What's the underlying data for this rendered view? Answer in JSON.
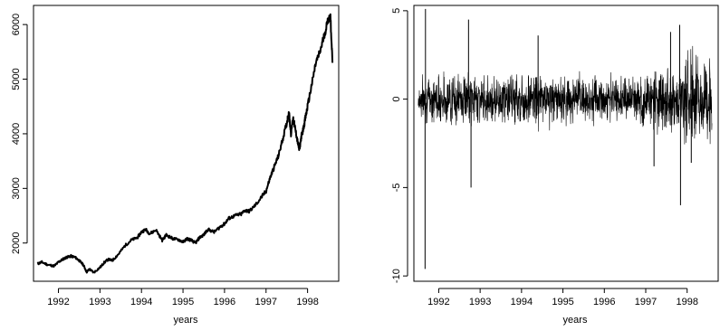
{
  "chart_data": [
    {
      "type": "line",
      "title": "",
      "xlabel": "years",
      "ylabel": "",
      "xlim": [
        1991.4,
        1998.75
      ],
      "ylim": [
        1300,
        6350
      ],
      "x_ticks": [
        1992,
        1993,
        1994,
        1995,
        1996,
        1997,
        1998
      ],
      "x_tick_labels": [
        "1992",
        "1993",
        "1994",
        "1995",
        "1996",
        "1997",
        "1998"
      ],
      "y_ticks": [
        2000,
        3000,
        4000,
        5000,
        6000
      ],
      "y_tick_labels": [
        "2000",
        "3000",
        "4000",
        "5000",
        "6000"
      ],
      "grid": false,
      "legend": "none",
      "series": [
        {
          "color": "#000000",
          "x": [
            1991.5,
            1991.6,
            1991.75,
            1991.9,
            1992.0,
            1992.1,
            1992.2,
            1992.3,
            1992.4,
            1992.5,
            1992.6,
            1992.68,
            1992.75,
            1992.85,
            1993.0,
            1993.1,
            1993.2,
            1993.3,
            1993.45,
            1993.6,
            1993.75,
            1993.9,
            1994.0,
            1994.1,
            1994.2,
            1994.35,
            1994.5,
            1994.6,
            1994.75,
            1994.9,
            1995.0,
            1995.1,
            1995.2,
            1995.3,
            1995.4,
            1995.5,
            1995.6,
            1995.75,
            1995.9,
            1996.0,
            1996.1,
            1996.25,
            1996.4,
            1996.5,
            1996.6,
            1996.75,
            1996.9,
            1997.0,
            1997.1,
            1997.2,
            1997.3,
            1997.4,
            1997.5,
            1997.55,
            1997.6,
            1997.65,
            1997.7,
            1997.75,
            1997.8,
            1997.85,
            1997.9,
            1997.95,
            1998.0,
            1998.1,
            1998.2,
            1998.3,
            1998.4,
            1998.5,
            1998.55,
            1998.6
          ],
          "y": [
            1620,
            1650,
            1600,
            1580,
            1650,
            1700,
            1740,
            1760,
            1740,
            1680,
            1600,
            1470,
            1520,
            1460,
            1550,
            1640,
            1700,
            1680,
            1800,
            1950,
            2050,
            2100,
            2200,
            2250,
            2170,
            2240,
            2050,
            2150,
            2080,
            2060,
            2020,
            2080,
            2050,
            2000,
            2100,
            2150,
            2250,
            2200,
            2300,
            2350,
            2450,
            2500,
            2530,
            2600,
            2580,
            2700,
            2850,
            2950,
            3200,
            3400,
            3600,
            3900,
            4200,
            4400,
            4000,
            4300,
            4100,
            3900,
            3700,
            3950,
            4100,
            4300,
            4500,
            4900,
            5300,
            5500,
            5800,
            6100,
            6150,
            5300
          ]
        }
      ]
    },
    {
      "type": "line",
      "title": "",
      "xlabel": "years",
      "ylabel": "",
      "xlim": [
        1991.4,
        1998.75
      ],
      "ylim": [
        -10.3,
        5.3
      ],
      "x_ticks": [
        1992,
        1993,
        1994,
        1995,
        1996,
        1997,
        1998
      ],
      "x_tick_labels": [
        "1992",
        "1993",
        "1994",
        "1995",
        "1996",
        "1997",
        "1998"
      ],
      "y_ticks": [
        -10,
        -5,
        0,
        5
      ],
      "y_tick_labels": [
        "-10",
        "-5",
        "0",
        "5"
      ],
      "grid": false,
      "legend": "none",
      "series": [
        {
          "color": "#000000",
          "band_x": [
            1991.5,
            1992.0,
            1992.5,
            1993.0,
            1993.5,
            1994.0,
            1994.5,
            1995.0,
            1995.5,
            1996.0,
            1996.5,
            1997.0,
            1997.5,
            1998.0,
            1998.6
          ],
          "band_amplitude": [
            1.0,
            1.2,
            1.3,
            1.1,
            1.1,
            1.4,
            1.3,
            1.2,
            1.1,
            1.0,
            1.0,
            1.3,
            1.8,
            2.2,
            2.0
          ],
          "spikes_x": [
            1991.67,
            1991.68,
            1992.72,
            1992.78,
            1994.4,
            1997.82,
            1997.84,
            1997.2,
            1998.1,
            1997.6
          ],
          "spikes_y": [
            -9.6,
            5.1,
            4.5,
            -5.0,
            3.6,
            4.2,
            -6.0,
            -3.8,
            -3.6,
            3.8
          ]
        }
      ]
    }
  ]
}
